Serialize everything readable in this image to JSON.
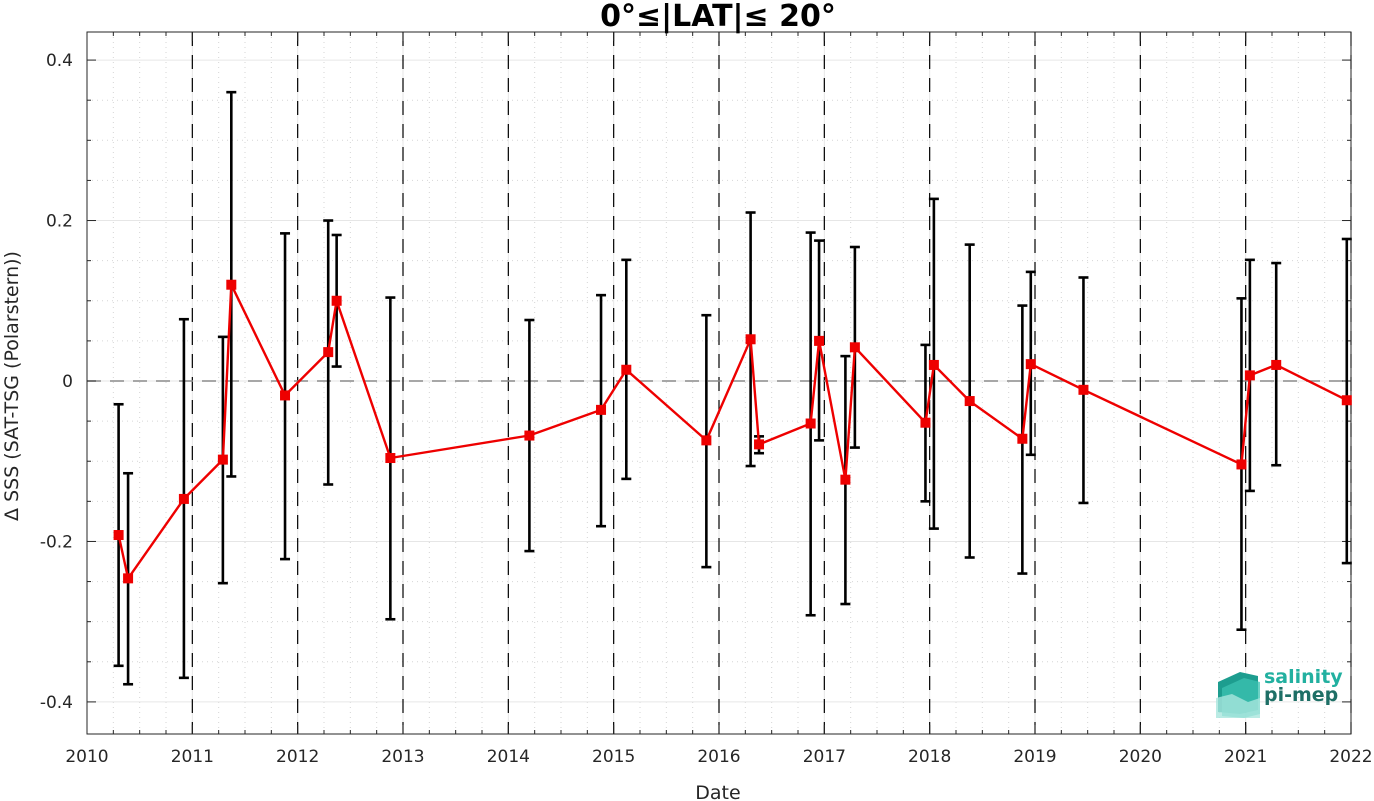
{
  "chart_data": {
    "type": "line",
    "title": "0°≤|LAT|≤ 20°",
    "xlabel": "Date",
    "ylabel": "Δ SSS (SAT-TSG (Polarstern))",
    "xlim": [
      2010,
      2022
    ],
    "ylim": [
      -0.44,
      0.435
    ],
    "xticks": [
      "2010",
      "2011",
      "2012",
      "2013",
      "2014",
      "2015",
      "2016",
      "2017",
      "2018",
      "2019",
      "2020",
      "2021",
      "2022"
    ],
    "yticks": [
      "-0.4",
      "-0.2",
      "0",
      "0.2",
      "0.4"
    ],
    "grid": true,
    "reference_line": 0,
    "year_boundaries": [
      2011,
      2012,
      2013,
      2014,
      2015,
      2016,
      2017,
      2018,
      2019,
      2020,
      2021,
      2022
    ],
    "series": [
      {
        "color": "#ee0000",
        "marker": "square",
        "errorbar_color": "#000000",
        "points": [
          {
            "x": 2010.3,
            "y": -0.192,
            "lo": -0.355,
            "hi": -0.029
          },
          {
            "x": 2010.39,
            "y": -0.246,
            "lo": -0.378,
            "hi": -0.115
          },
          {
            "x": 2010.92,
            "y": -0.147,
            "lo": -0.37,
            "hi": 0.077
          },
          {
            "x": 2011.29,
            "y": -0.098,
            "lo": -0.252,
            "hi": 0.055
          },
          {
            "x": 2011.37,
            "y": 0.12,
            "lo": -0.119,
            "hi": 0.36
          },
          {
            "x": 2011.88,
            "y": -0.018,
            "lo": -0.222,
            "hi": 0.184
          },
          {
            "x": 2012.29,
            "y": 0.036,
            "lo": -0.129,
            "hi": 0.2
          },
          {
            "x": 2012.37,
            "y": 0.1,
            "lo": 0.018,
            "hi": 0.182
          },
          {
            "x": 2012.88,
            "y": -0.096,
            "lo": -0.297,
            "hi": 0.104
          },
          {
            "x": 2014.2,
            "y": -0.068,
            "lo": -0.212,
            "hi": 0.076
          },
          {
            "x": 2014.88,
            "y": -0.036,
            "lo": -0.181,
            "hi": 0.107
          },
          {
            "x": 2015.12,
            "y": 0.014,
            "lo": -0.122,
            "hi": 0.151
          },
          {
            "x": 2015.88,
            "y": -0.074,
            "lo": -0.232,
            "hi": 0.082
          },
          {
            "x": 2016.3,
            "y": 0.052,
            "lo": -0.106,
            "hi": 0.21
          },
          {
            "x": 2016.38,
            "y": -0.079,
            "lo": -0.09,
            "hi": -0.069
          },
          {
            "x": 2016.87,
            "y": -0.053,
            "lo": -0.292,
            "hi": 0.185
          },
          {
            "x": 2016.95,
            "y": 0.05,
            "lo": -0.074,
            "hi": 0.175
          },
          {
            "x": 2017.2,
            "y": -0.123,
            "lo": -0.278,
            "hi": 0.031
          },
          {
            "x": 2017.29,
            "y": 0.042,
            "lo": -0.083,
            "hi": 0.167
          },
          {
            "x": 2017.96,
            "y": -0.052,
            "lo": -0.15,
            "hi": 0.045
          },
          {
            "x": 2018.04,
            "y": 0.02,
            "lo": -0.184,
            "hi": 0.227
          },
          {
            "x": 2018.38,
            "y": -0.025,
            "lo": -0.22,
            "hi": 0.17
          },
          {
            "x": 2018.88,
            "y": -0.072,
            "lo": -0.24,
            "hi": 0.094
          },
          {
            "x": 2018.96,
            "y": 0.021,
            "lo": -0.092,
            "hi": 0.136
          },
          {
            "x": 2019.46,
            "y": -0.011,
            "lo": -0.152,
            "hi": 0.129
          },
          {
            "x": 2020.96,
            "y": -0.104,
            "lo": -0.31,
            "hi": 0.103
          },
          {
            "x": 2021.04,
            "y": 0.007,
            "lo": -0.137,
            "hi": 0.151
          },
          {
            "x": 2021.29,
            "y": 0.02,
            "lo": -0.105,
            "hi": 0.147
          },
          {
            "x": 2021.96,
            "y": -0.024,
            "lo": -0.227,
            "hi": 0.177
          }
        ]
      }
    ]
  },
  "logo": {
    "line1": "salinity",
    "line2": "pi-mep"
  }
}
